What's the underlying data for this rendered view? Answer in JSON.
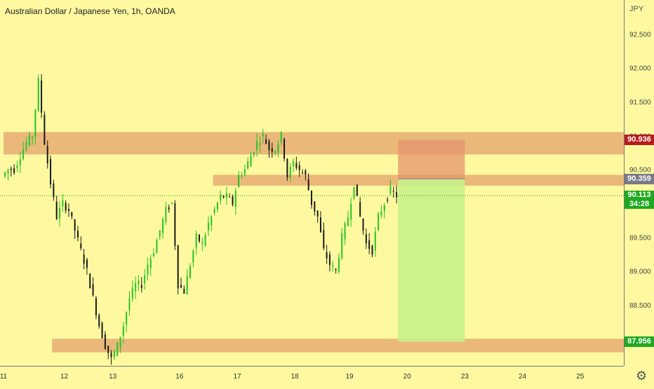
{
  "header": {
    "title": "Australian Dollar / Japanese Yen, 1h, OANDA"
  },
  "price_axis": {
    "currency": "JPY"
  },
  "time_axis": {
    "labels": [
      "11",
      "12",
      "13",
      "16",
      "17",
      "18",
      "19",
      "20",
      "23",
      "24",
      "25"
    ]
  },
  "price_tags": {
    "stop": {
      "value": "90.936",
      "color": "#b71c1c"
    },
    "entry": {
      "value": "90.359",
      "color": "#787b86"
    },
    "current": {
      "value": "90.113",
      "countdown": "34:28",
      "color": "#21a821"
    },
    "target": {
      "value": "87.956",
      "color": "#21a821"
    }
  },
  "colors": {
    "background": "#fef9a0",
    "zone": "#e8b074",
    "up_candle": "#26c426",
    "down_candle": "#1a1a1a",
    "risk_box": "#e5936e",
    "reward_box": "#c8f08a"
  },
  "chart_data": {
    "type": "candlestick",
    "title": "Australian Dollar / Japanese Yen, 1h, OANDA",
    "ylabel": "JPY",
    "ylim": [
      87.6,
      93.0
    ],
    "y_ticks": [
      88.0,
      88.5,
      89.0,
      89.5,
      90.0,
      90.5,
      91.0,
      91.5,
      92.0,
      92.5
    ],
    "x_tick_labels": [
      "11",
      "12",
      "13",
      "16",
      "17",
      "18",
      "19",
      "20",
      "23",
      "24",
      "25"
    ],
    "price_path": [
      [
        0,
        90.4
      ],
      [
        2,
        90.5
      ],
      [
        4,
        90.5
      ],
      [
        6,
        90.7
      ],
      [
        8,
        90.9
      ],
      [
        10,
        91.0
      ],
      [
        12,
        91.8
      ],
      [
        14,
        90.9
      ],
      [
        16,
        90.3
      ],
      [
        18,
        89.8
      ],
      [
        20,
        90.0
      ],
      [
        22,
        89.9
      ],
      [
        24,
        89.6
      ],
      [
        26,
        89.3
      ],
      [
        28,
        89.0
      ],
      [
        30,
        88.6
      ],
      [
        32,
        88.2
      ],
      [
        34,
        87.9
      ],
      [
        36,
        87.7
      ],
      [
        38,
        87.9
      ],
      [
        40,
        88.2
      ],
      [
        42,
        88.6
      ],
      [
        44,
        88.8
      ],
      [
        46,
        88.8
      ],
      [
        48,
        89.1
      ],
      [
        50,
        89.3
      ],
      [
        52,
        89.6
      ],
      [
        54,
        89.9
      ],
      [
        56,
        90.0
      ],
      [
        58,
        88.8
      ],
      [
        60,
        88.7
      ],
      [
        62,
        89.1
      ],
      [
        64,
        89.5
      ],
      [
        66,
        89.4
      ],
      [
        68,
        89.7
      ],
      [
        70,
        89.9
      ],
      [
        72,
        90.1
      ],
      [
        74,
        90.1
      ],
      [
        76,
        90.0
      ],
      [
        78,
        90.4
      ],
      [
        80,
        90.5
      ],
      [
        82,
        90.7
      ],
      [
        84,
        90.9
      ],
      [
        86,
        91.0
      ],
      [
        88,
        90.8
      ],
      [
        90,
        90.8
      ],
      [
        92,
        91.0
      ],
      [
        94,
        90.4
      ],
      [
        96,
        90.6
      ],
      [
        98,
        90.5
      ],
      [
        100,
        90.4
      ],
      [
        102,
        90.0
      ],
      [
        104,
        89.8
      ],
      [
        106,
        89.3
      ],
      [
        108,
        89.1
      ],
      [
        110,
        89.0
      ],
      [
        112,
        89.5
      ],
      [
        114,
        89.8
      ],
      [
        116,
        90.3
      ],
      [
        118,
        89.8
      ],
      [
        120,
        89.4
      ],
      [
        122,
        89.3
      ],
      [
        124,
        89.8
      ],
      [
        126,
        90.0
      ],
      [
        128,
        90.2
      ],
      [
        130,
        90.113
      ]
    ],
    "zones": [
      {
        "low": 90.72,
        "high": 91.05,
        "start": 0,
        "end": null
      },
      {
        "low": 90.26,
        "high": 90.42,
        "start": 69,
        "end": null
      },
      {
        "low": 87.8,
        "high": 88.0,
        "start": 16,
        "end": null
      }
    ],
    "position": {
      "type": "short",
      "entry": 90.359,
      "stop": 90.936,
      "target": 87.956,
      "start": 130,
      "end": 152
    },
    "current_price": 90.113,
    "x_index_range": [
      0,
      200
    ],
    "x_tick_index": [
      0,
      20,
      36,
      58,
      77,
      96,
      114,
      133,
      152,
      171,
      190
    ],
    "grid": false,
    "legend": "none"
  }
}
